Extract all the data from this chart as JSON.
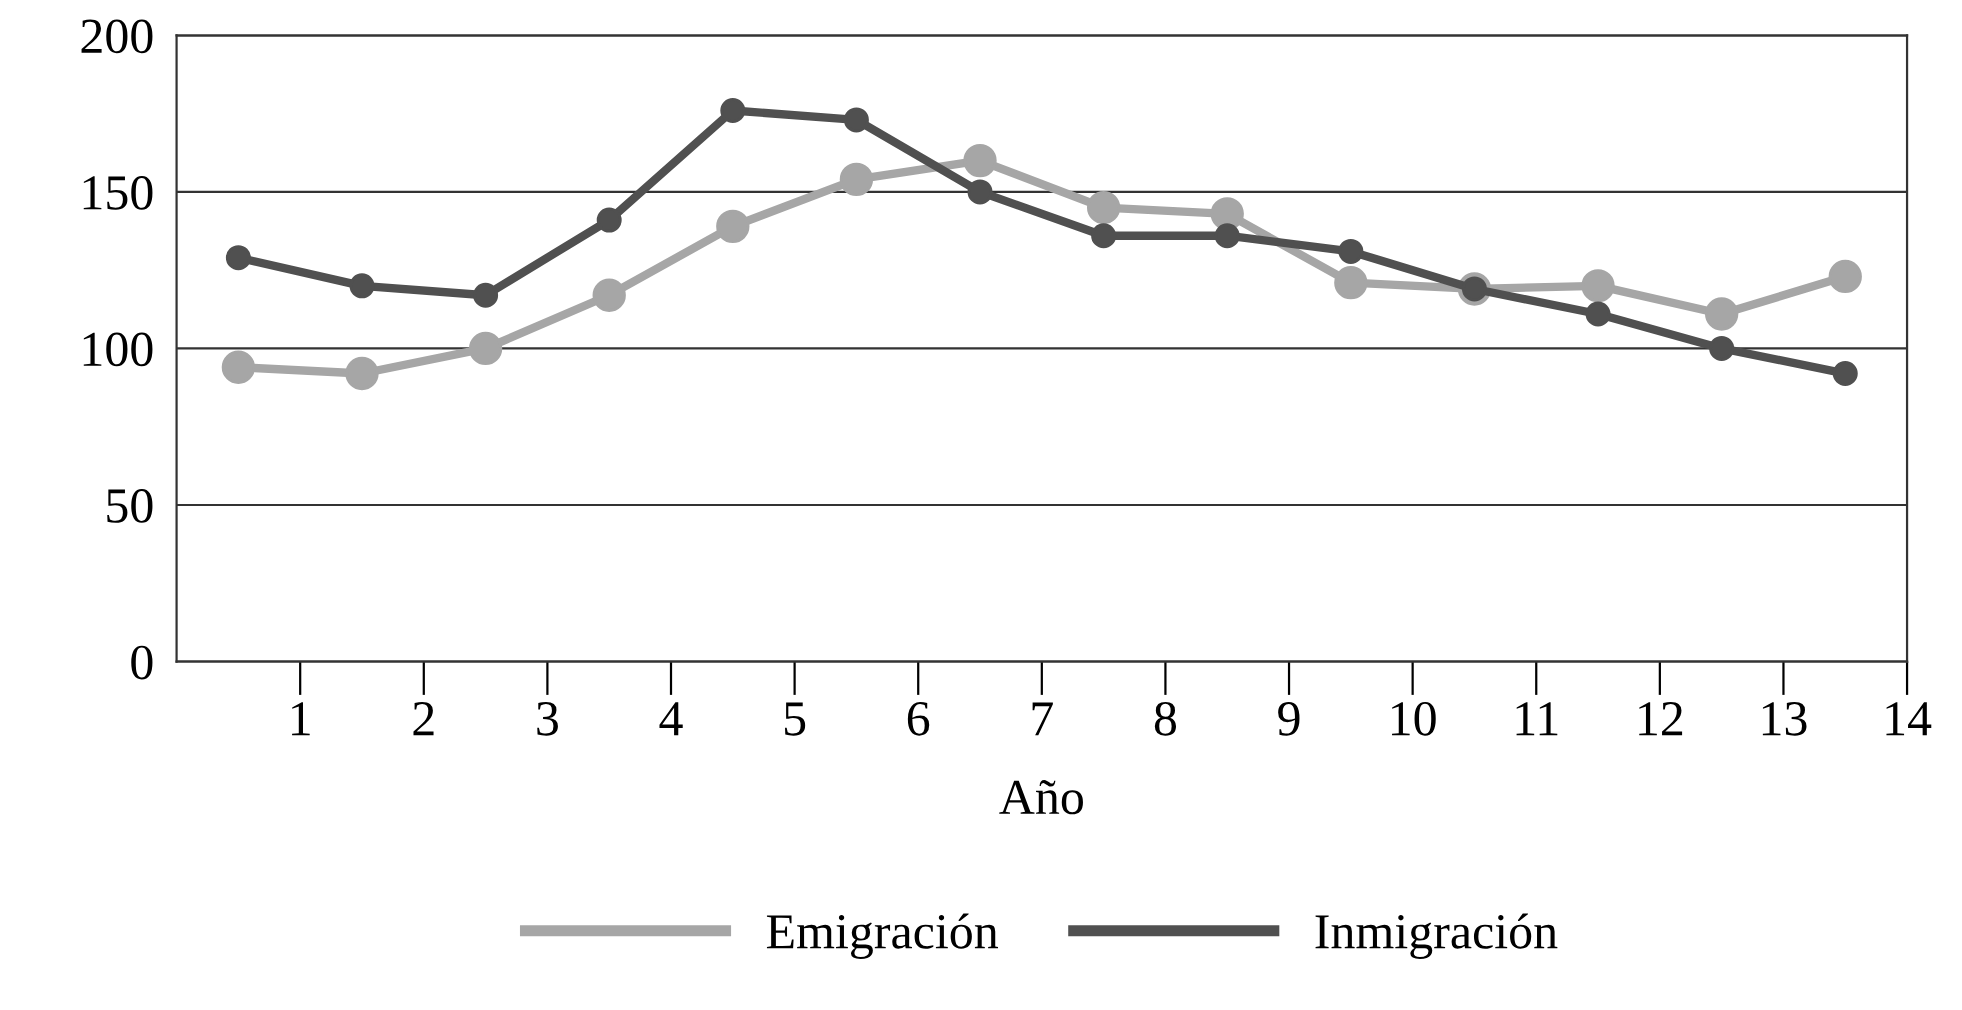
{
  "chart_data": {
    "type": "line",
    "xlabel": "Año",
    "x": [
      0.5,
      1.5,
      2.5,
      3.5,
      4.5,
      5.5,
      6.5,
      7.5,
      8.5,
      9.5,
      10.5,
      11.5,
      12.5,
      13.5
    ],
    "series": [
      {
        "name": "Emigración",
        "color": "#a6a6a6",
        "values": [
          94,
          92,
          100,
          117,
          139,
          154,
          160,
          145,
          143,
          121,
          119,
          120,
          111,
          123
        ]
      },
      {
        "name": "Inmigración",
        "color": "#505050",
        "values": [
          129,
          120,
          117,
          141,
          176,
          173,
          150,
          136,
          136,
          131,
          119,
          111,
          100,
          92
        ]
      }
    ],
    "xlim": [
      0,
      14
    ],
    "xticks": [
      1,
      2,
      3,
      4,
      5,
      6,
      7,
      8,
      9,
      10,
      11,
      12,
      13,
      14
    ],
    "ylim": [
      0,
      200
    ],
    "yticks": [
      0,
      50,
      100,
      150,
      200
    ],
    "grid": "y",
    "legend": "bottom",
    "marker": "circle",
    "line_style": "solid"
  }
}
